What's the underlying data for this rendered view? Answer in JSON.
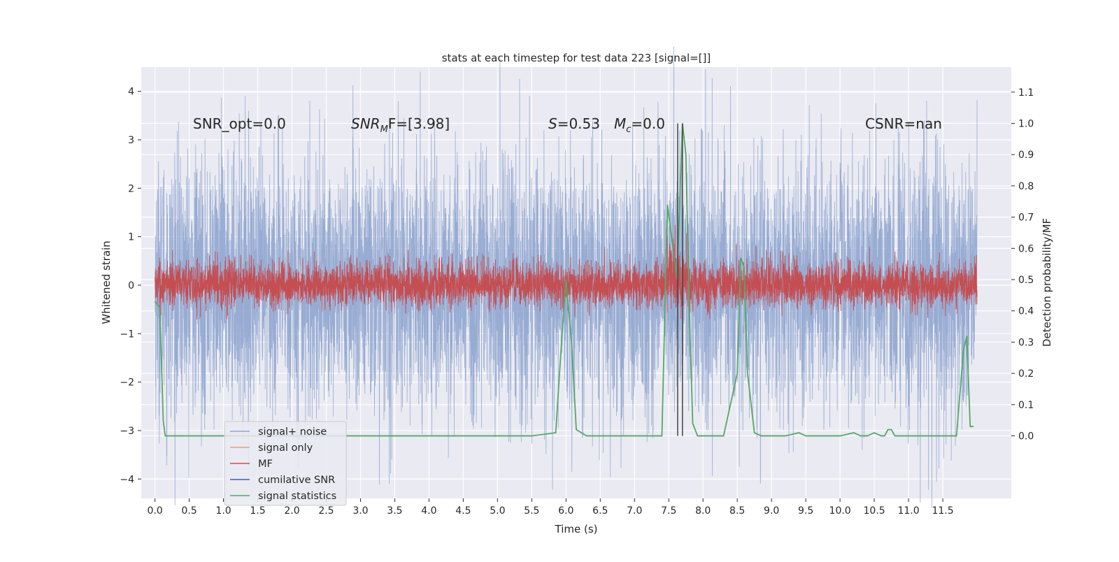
{
  "chart_data": {
    "type": "line",
    "title": "stats at each timestep for test data 223 [signal=[]]",
    "xlabel": "Time (s)",
    "ylabel": "Whitened strain",
    "ylabel_right": "Detection probability/MF",
    "xlim": [
      -0.2,
      12.5
    ],
    "ylim": [
      -4.4,
      4.5
    ],
    "ylim_right": [
      -0.2,
      1.18
    ],
    "x_ticks": [
      0.0,
      0.5,
      1.0,
      1.5,
      2.0,
      2.5,
      3.0,
      3.5,
      4.0,
      4.5,
      5.0,
      5.5,
      6.0,
      6.5,
      7.0,
      7.5,
      8.0,
      8.5,
      9.0,
      9.5,
      10.0,
      10.5,
      11.0,
      11.5
    ],
    "x_tick_labels": [
      "0.0",
      "0.5",
      "1.0",
      "1.5",
      "2.0",
      "2.5",
      "3.0",
      "3.5",
      "4.0",
      "4.5",
      "5.0",
      "5.5",
      "6.0",
      "6.5",
      "7.0",
      "7.5",
      "8.0",
      "8.5",
      "9.0",
      "9.5",
      "10.0",
      "10.5",
      "11.0",
      "11.5"
    ],
    "y_ticks": [
      -4,
      -3,
      -2,
      -1,
      0,
      1,
      2,
      3,
      4
    ],
    "y_tick_labels": [
      "−4",
      "−3",
      "−2",
      "−1",
      "0",
      "1",
      "2",
      "3",
      "4"
    ],
    "y_right_ticks": [
      0.0,
      0.1,
      0.2,
      0.3,
      0.4,
      0.5,
      0.6,
      0.7,
      0.8,
      0.9,
      1.0,
      1.1
    ],
    "y_right_tick_labels": [
      "0.0",
      "0.1",
      "0.2",
      "0.3",
      "0.4",
      "0.5",
      "0.6",
      "0.7",
      "0.8",
      "0.9",
      "1.0",
      "1.1"
    ],
    "grid": true,
    "legend_position": "lower-left",
    "legend": [
      {
        "label": "signal+ noise",
        "color": "#8fa5cf"
      },
      {
        "label": "signal only",
        "color": "#dea183"
      },
      {
        "label": "MF",
        "color": "#c44e52"
      },
      {
        "label": "cumilative SNR",
        "color": "#3b5ea8"
      },
      {
        "label": "signal statistics",
        "color": "#55a868"
      }
    ],
    "annotations": {
      "snr_opt": "SNR_opt=0.0",
      "snr_mf_name": "SNR",
      "snr_mf_sub": "M",
      "snr_mf_rest": "F=[3.98]",
      "s_name": "S",
      "s_val": "=0.53",
      "mc_name": "M",
      "mc_sub": "c",
      "mc_val": "=0.0",
      "csnr": "CSNR=nan"
    },
    "series": [
      {
        "name": "signal+ noise",
        "axis": "left",
        "style": "noise",
        "x_range": [
          0.0,
          12.0
        ],
        "samples": 6000,
        "amplitude_rms": 1.3,
        "color": "#8fa5cf"
      },
      {
        "name": "MF",
        "axis": "left",
        "style": "noise",
        "x_range": [
          0.0,
          12.0
        ],
        "samples": 6000,
        "amplitude_rms": 0.24,
        "color": "#c44e52"
      },
      {
        "name": "signal statistics",
        "axis": "right",
        "color": "#55a868",
        "x": [
          0.0,
          0.07,
          0.1,
          0.12,
          0.15,
          0.3,
          0.5,
          1.0,
          2.0,
          3.0,
          4.0,
          5.0,
          5.5,
          5.85,
          5.92,
          6.0,
          6.08,
          6.15,
          6.3,
          6.5,
          7.0,
          7.2,
          7.4,
          7.48,
          7.55,
          7.62,
          7.7,
          7.75,
          7.8,
          7.85,
          7.92,
          8.0,
          8.3,
          8.5,
          8.55,
          8.6,
          8.65,
          8.75,
          8.85,
          9.0,
          9.2,
          9.4,
          9.5,
          9.6,
          10.0,
          10.2,
          10.3,
          10.4,
          10.5,
          10.6,
          10.65,
          10.7,
          10.75,
          10.8,
          11.0,
          11.2,
          11.4,
          11.5,
          11.6,
          11.65,
          11.7,
          11.8,
          11.85,
          11.9,
          11.95
        ],
        "y": [
          0.43,
          0.41,
          0.2,
          0.05,
          0.0,
          0.0,
          0.0,
          0.0,
          0.0,
          0.0,
          0.0,
          0.0,
          0.0,
          0.01,
          0.25,
          0.5,
          0.3,
          0.02,
          0.0,
          0.0,
          0.0,
          0.0,
          0.0,
          0.74,
          0.62,
          0.5,
          1.0,
          0.9,
          0.4,
          0.04,
          0.0,
          0.0,
          0.0,
          0.2,
          0.57,
          0.54,
          0.2,
          0.01,
          0.0,
          0.0,
          0.0,
          0.01,
          0.0,
          0.0,
          0.0,
          0.01,
          0.0,
          0.0,
          0.01,
          0.0,
          0.0,
          0.02,
          0.02,
          0.0,
          0.0,
          0.0,
          0.0,
          0.0,
          0.0,
          0.0,
          0.0,
          0.27,
          0.32,
          0.03,
          0.03
        ]
      }
    ],
    "vertical_lines": [
      {
        "x": 7.63,
        "color": "#444444"
      },
      {
        "x": 7.7,
        "color": "#444444"
      }
    ]
  }
}
